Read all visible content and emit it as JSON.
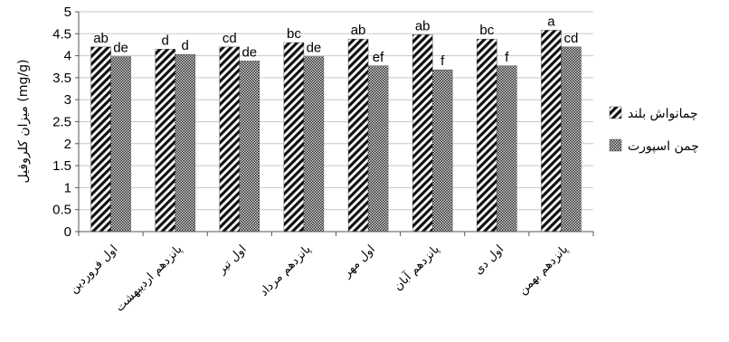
{
  "chart_data": {
    "type": "bar",
    "ylabel": "میزان کلروفیل (mg/g)",
    "ylim": [
      0,
      5
    ],
    "yticks": [
      "0",
      "0.5",
      "1",
      "1.5",
      "2",
      "2.5",
      "3",
      "3.5",
      "4",
      "4.5",
      "5"
    ],
    "grid": true,
    "legend_position": "right",
    "categories": [
      "اول فروردین",
      "پانزدهم اردیبهشت",
      "اول تیر",
      "پانزدهم مرداد",
      "اول مهر",
      "پانزدهم آبان",
      "اول دی",
      "پانزدهم بهمن"
    ],
    "series": [
      {
        "name": "چمانواش بلند",
        "pattern": "diagonal-stripes",
        "values": [
          4.2,
          4.15,
          4.2,
          4.3,
          4.38,
          4.48,
          4.38,
          4.58
        ],
        "labels": [
          "ab",
          "d",
          "cd",
          "bc",
          "ab",
          "ab",
          "bc",
          "a"
        ]
      },
      {
        "name": "چمن اسپورت",
        "pattern": "dense-checker",
        "values": [
          3.98,
          4.03,
          3.88,
          3.98,
          3.77,
          3.68,
          3.77,
          4.2
        ],
        "labels": [
          "de",
          "d",
          "de",
          "de",
          "ef",
          "f",
          "f",
          "cd"
        ]
      }
    ]
  }
}
